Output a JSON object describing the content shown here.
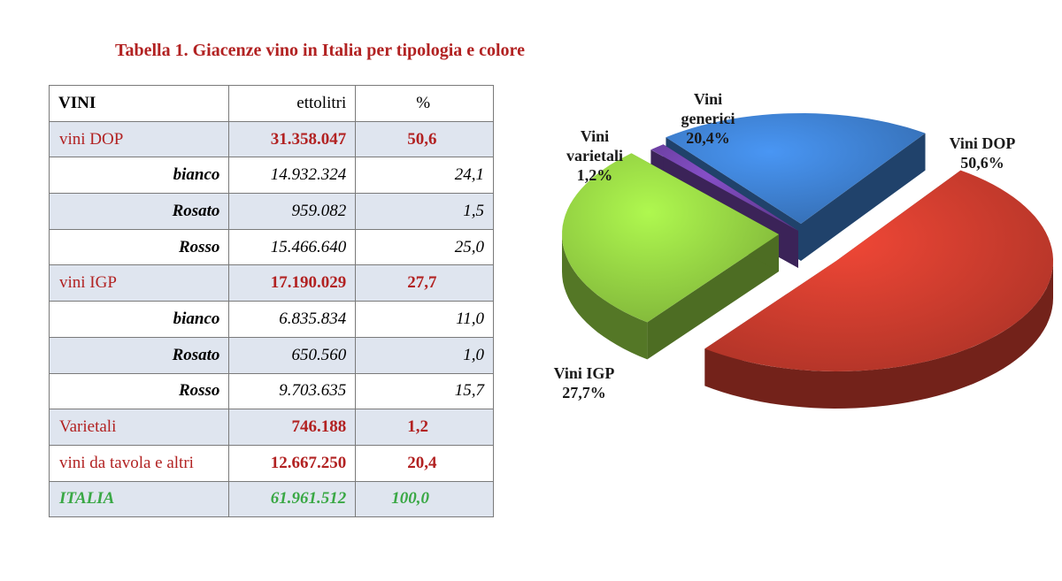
{
  "title": "Tabella 1. Giacenze vino in Italia per tipologia e colore",
  "table": {
    "headers": [
      "VINI",
      "ettolitri",
      "%"
    ],
    "rows": [
      {
        "label": "vini DOP",
        "hl": "31.358.047",
        "pct": "50,6",
        "kind": "cat"
      },
      {
        "label": "bianco",
        "hl": "14.932.324",
        "pct": "24,1",
        "kind": "sub"
      },
      {
        "label": "Rosato",
        "hl": "959.082",
        "pct": "1,5",
        "kind": "sub"
      },
      {
        "label": "Rosso",
        "hl": "15.466.640",
        "pct": "25,0",
        "kind": "sub"
      },
      {
        "label": "vini IGP",
        "hl": "17.190.029",
        "pct": "27,7",
        "kind": "cat"
      },
      {
        "label": "bianco",
        "hl": "6.835.834",
        "pct": "11,0",
        "kind": "sub"
      },
      {
        "label": "Rosato",
        "hl": "650.560",
        "pct": "1,0",
        "kind": "sub"
      },
      {
        "label": "Rosso",
        "hl": "9.703.635",
        "pct": "15,7",
        "kind": "sub"
      },
      {
        "label": "Varietali",
        "hl": "746.188",
        "pct": "1,2",
        "kind": "cat"
      },
      {
        "label": "vini da tavola e altri",
        "hl": "12.667.250",
        "pct": "20,4",
        "kind": "cat"
      },
      {
        "label": "ITALIA",
        "hl": "61.961.512",
        "pct": "100,0",
        "kind": "total"
      }
    ]
  },
  "chart_data": {
    "type": "pie",
    "slices": [
      {
        "name": "Vini DOP",
        "label_lines": [
          "Vini DOP",
          "50,6%"
        ],
        "value": 50.6,
        "color": "#c0392b"
      },
      {
        "name": "Vini IGP",
        "label_lines": [
          "Vini IGP",
          "27,7%"
        ],
        "value": 27.7,
        "color": "#8cc63f"
      },
      {
        "name": "Vini varietali",
        "label_lines": [
          "Vini",
          "varietali",
          "1,2%"
        ],
        "value": 1.2,
        "color": "#6b3fa0"
      },
      {
        "name": "Vini generici",
        "label_lines": [
          "Vini",
          "generici",
          "20,4%"
        ],
        "value": 20.4,
        "color": "#3a78c3"
      }
    ]
  }
}
